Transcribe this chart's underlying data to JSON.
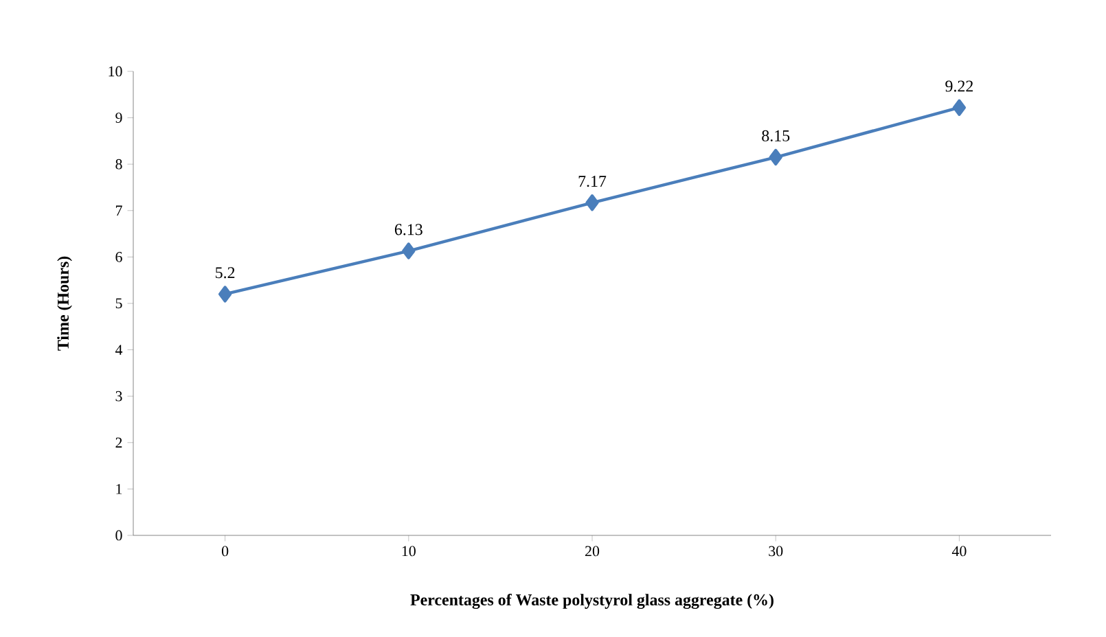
{
  "chart_data": {
    "type": "line",
    "xlabel": "Percentages of Waste polystyrol glass aggregate (%)",
    "ylabel": "Time (Hours)",
    "categories": [
      "0",
      "10",
      "20",
      "30",
      "40"
    ],
    "series": [
      {
        "color": "#4a7ebb",
        "values": [
          5.2,
          6.13,
          7.17,
          8.15,
          9.22
        ]
      }
    ],
    "ylim": [
      0,
      10
    ],
    "yticks": [
      0,
      1,
      2,
      3,
      4,
      5,
      6,
      7,
      8,
      9,
      10
    ],
    "grid": false,
    "marker": "diamond",
    "line_style": "solid",
    "data_labels": true
  }
}
